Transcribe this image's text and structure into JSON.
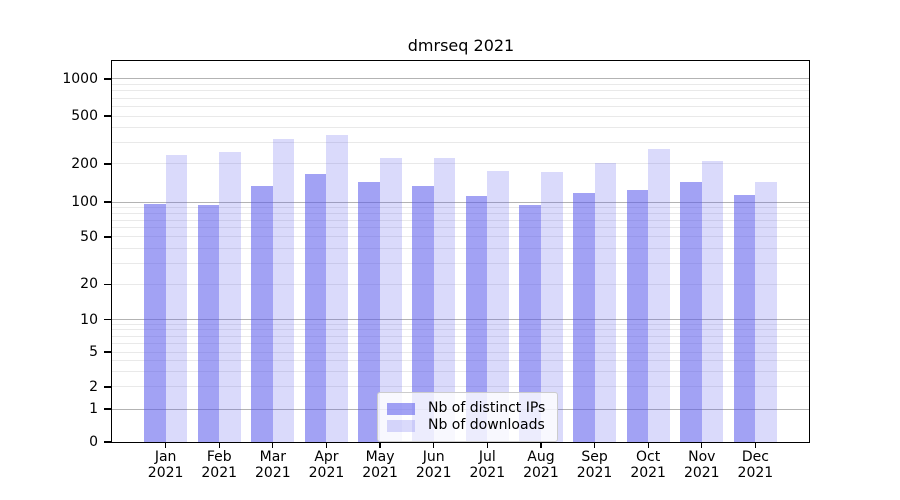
{
  "title": "dmrseq 2021",
  "chart_data": {
    "type": "bar",
    "title": "dmrseq 2021",
    "categories": [
      "Jan",
      "Feb",
      "Mar",
      "Apr",
      "May",
      "Jun",
      "Jul",
      "Aug",
      "Sep",
      "Oct",
      "Nov",
      "Dec"
    ],
    "category_year": "2021",
    "series": [
      {
        "name": "Nb of distinct IPs",
        "color": "rgba(85,85,235,0.55)",
        "values": [
          96,
          95,
          133,
          166,
          144,
          134,
          112,
          94,
          118,
          125,
          144,
          113
        ]
      },
      {
        "name": "Nb of downloads",
        "color": "rgba(85,85,235,0.22)",
        "values": [
          239,
          250,
          320,
          345,
          224,
          224,
          175,
          172,
          205,
          268,
          210,
          143
        ]
      }
    ],
    "yticks": [
      0,
      1,
      2,
      5,
      10,
      20,
      50,
      100,
      200,
      500,
      1000
    ],
    "ylim": [
      0,
      1400
    ],
    "yscale": "log-like (asinh), linear below 1",
    "xlabel": "",
    "ylabel": "",
    "grid": "horizontal major + minor",
    "legend_position": "lower center",
    "colors": {
      "major_grid": "#b3b3b3",
      "minor_grid": "#e9e9e9",
      "spine": "#000000",
      "background": "#ffffff"
    }
  }
}
